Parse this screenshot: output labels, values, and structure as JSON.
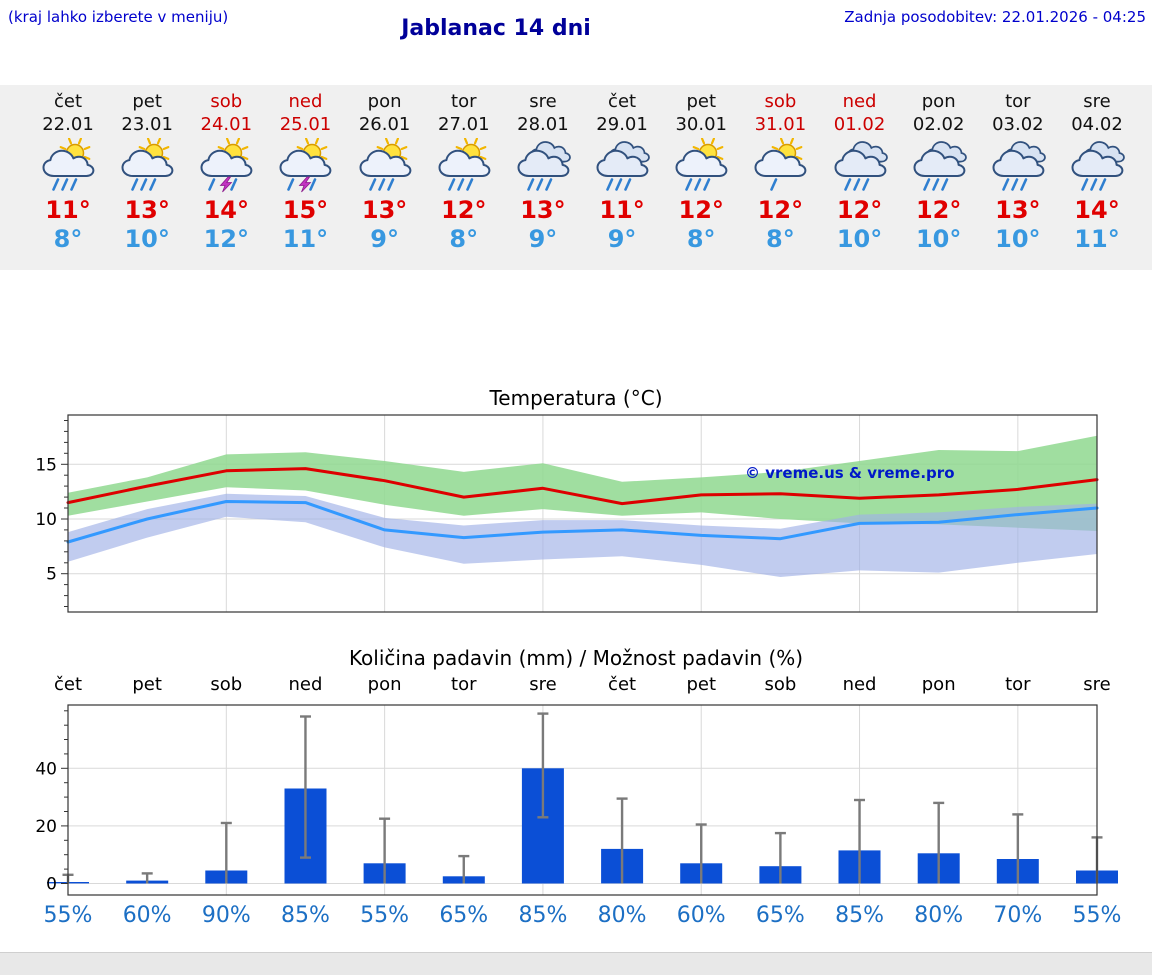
{
  "header": {
    "hint": "(kraj lahko izberete v meniju)",
    "title": "Jablanac 14 dni",
    "updated": "Zadnja posodobitev: 22.01.2026 - 04:25"
  },
  "colors": {
    "title": "#000099",
    "link_blue": "#0000cc",
    "weekend_red": "#cc0000",
    "high_temp": "#e00000",
    "low_temp": "#3898e0",
    "probability_blue": "#1c6fc4",
    "strip_bg": "#f0f0f0"
  },
  "forecast": {
    "days": [
      {
        "name": "čet",
        "date": "22.01",
        "weekend": false,
        "icon": "sun-rain",
        "high": "11°",
        "low": "8°"
      },
      {
        "name": "pet",
        "date": "23.01",
        "weekend": false,
        "icon": "sun-rain",
        "high": "13°",
        "low": "10°"
      },
      {
        "name": "sob",
        "date": "24.01",
        "weekend": true,
        "icon": "sun-storm",
        "high": "14°",
        "low": "12°"
      },
      {
        "name": "ned",
        "date": "25.01",
        "weekend": true,
        "icon": "sun-storm",
        "high": "15°",
        "low": "11°"
      },
      {
        "name": "pon",
        "date": "26.01",
        "weekend": false,
        "icon": "sun-rain",
        "high": "13°",
        "low": "9°"
      },
      {
        "name": "tor",
        "date": "27.01",
        "weekend": false,
        "icon": "sun-rain",
        "high": "12°",
        "low": "8°"
      },
      {
        "name": "sre",
        "date": "28.01",
        "weekend": false,
        "icon": "cloud-rain",
        "high": "13°",
        "low": "9°"
      },
      {
        "name": "čet",
        "date": "29.01",
        "weekend": false,
        "icon": "cloud-rain",
        "high": "11°",
        "low": "9°"
      },
      {
        "name": "pet",
        "date": "30.01",
        "weekend": false,
        "icon": "sun-rain",
        "high": "12°",
        "low": "8°"
      },
      {
        "name": "sob",
        "date": "31.01",
        "weekend": true,
        "icon": "sun-cloud",
        "high": "12°",
        "low": "8°"
      },
      {
        "name": "ned",
        "date": "01.02",
        "weekend": true,
        "icon": "cloud-rain",
        "high": "12°",
        "low": "10°"
      },
      {
        "name": "pon",
        "date": "02.02",
        "weekend": false,
        "icon": "cloud-rain",
        "high": "12°",
        "low": "10°"
      },
      {
        "name": "tor",
        "date": "03.02",
        "weekend": false,
        "icon": "cloud-rain",
        "high": "13°",
        "low": "10°"
      },
      {
        "name": "sre",
        "date": "04.02",
        "weekend": false,
        "icon": "cloud-rain",
        "high": "14°",
        "low": "11°"
      }
    ]
  },
  "chart_data": [
    {
      "type": "line",
      "title": "Temperatura (°C)",
      "categories": [
        "čet",
        "pet",
        "sob",
        "ned",
        "pon",
        "tor",
        "sre",
        "čet",
        "pet",
        "sob",
        "ned",
        "pon",
        "tor",
        "sre"
      ],
      "ylim": [
        1.5,
        19.5
      ],
      "yticks": [
        5,
        10,
        15
      ],
      "grid_x_indices": [
        2,
        4,
        6,
        8,
        10,
        12
      ],
      "watermark": "© vreme.us & vreme.pro",
      "series": [
        {
          "name": "max-temp",
          "color": "#dd0000",
          "values": [
            11.5,
            13.0,
            14.4,
            14.6,
            13.5,
            12.0,
            12.8,
            11.4,
            12.2,
            12.3,
            11.9,
            12.2,
            12.7,
            13.6
          ]
        },
        {
          "name": "min-temp",
          "color": "#3399ff",
          "values": [
            7.9,
            10.0,
            11.6,
            11.5,
            9.0,
            8.3,
            8.8,
            9.0,
            8.5,
            8.2,
            9.6,
            9.7,
            10.4,
            11.0
          ]
        }
      ],
      "bands": [
        {
          "name": "max-range",
          "color": "#8fd88f",
          "opacity": 0.85,
          "upper": [
            12.4,
            13.8,
            15.9,
            16.1,
            15.3,
            14.3,
            15.1,
            13.4,
            13.8,
            14.3,
            15.3,
            16.3,
            16.2,
            17.6
          ],
          "lower": [
            10.3,
            11.6,
            12.9,
            12.6,
            11.3,
            10.3,
            10.9,
            10.3,
            10.6,
            10.0,
            9.6,
            9.5,
            9.2,
            8.9
          ]
        },
        {
          "name": "min-range",
          "color": "#9fb0e6",
          "opacity": 0.65,
          "upper": [
            8.8,
            10.9,
            12.3,
            12.1,
            10.1,
            9.4,
            9.9,
            9.9,
            9.4,
            9.1,
            10.4,
            10.6,
            11.1,
            11.4
          ],
          "lower": [
            6.1,
            8.3,
            10.2,
            9.7,
            7.4,
            5.9,
            6.3,
            6.6,
            5.8,
            4.7,
            5.3,
            5.1,
            6.0,
            6.8
          ]
        }
      ]
    },
    {
      "type": "bar",
      "title": "Količina padavin (mm) / Možnost padavin (%)",
      "categories": [
        "čet",
        "pet",
        "sob",
        "ned",
        "pon",
        "tor",
        "sre",
        "čet",
        "pet",
        "sob",
        "ned",
        "pon",
        "tor",
        "sre"
      ],
      "ylim": [
        -4,
        62
      ],
      "yticks": [
        0,
        20,
        40
      ],
      "grid_x_indices": [
        2,
        4,
        6,
        8,
        10,
        12
      ],
      "bar_color": "#0b4fd6",
      "values": [
        0.5,
        1.0,
        4.5,
        33,
        7,
        2.5,
        40,
        12,
        7,
        6,
        11.5,
        10.5,
        8.5,
        4.5
      ],
      "whisker_low": [
        0,
        0,
        0,
        9,
        0,
        0,
        23,
        0,
        0,
        0,
        0,
        0,
        0,
        0
      ],
      "whisker_high": [
        3,
        3.5,
        21,
        58,
        22.5,
        9.5,
        59,
        29.5,
        20.5,
        17.5,
        29,
        28,
        24,
        16
      ],
      "probability_pct": [
        "55%",
        "60%",
        "90%",
        "85%",
        "55%",
        "65%",
        "85%",
        "80%",
        "60%",
        "65%",
        "85%",
        "80%",
        "70%",
        "55%"
      ]
    }
  ]
}
